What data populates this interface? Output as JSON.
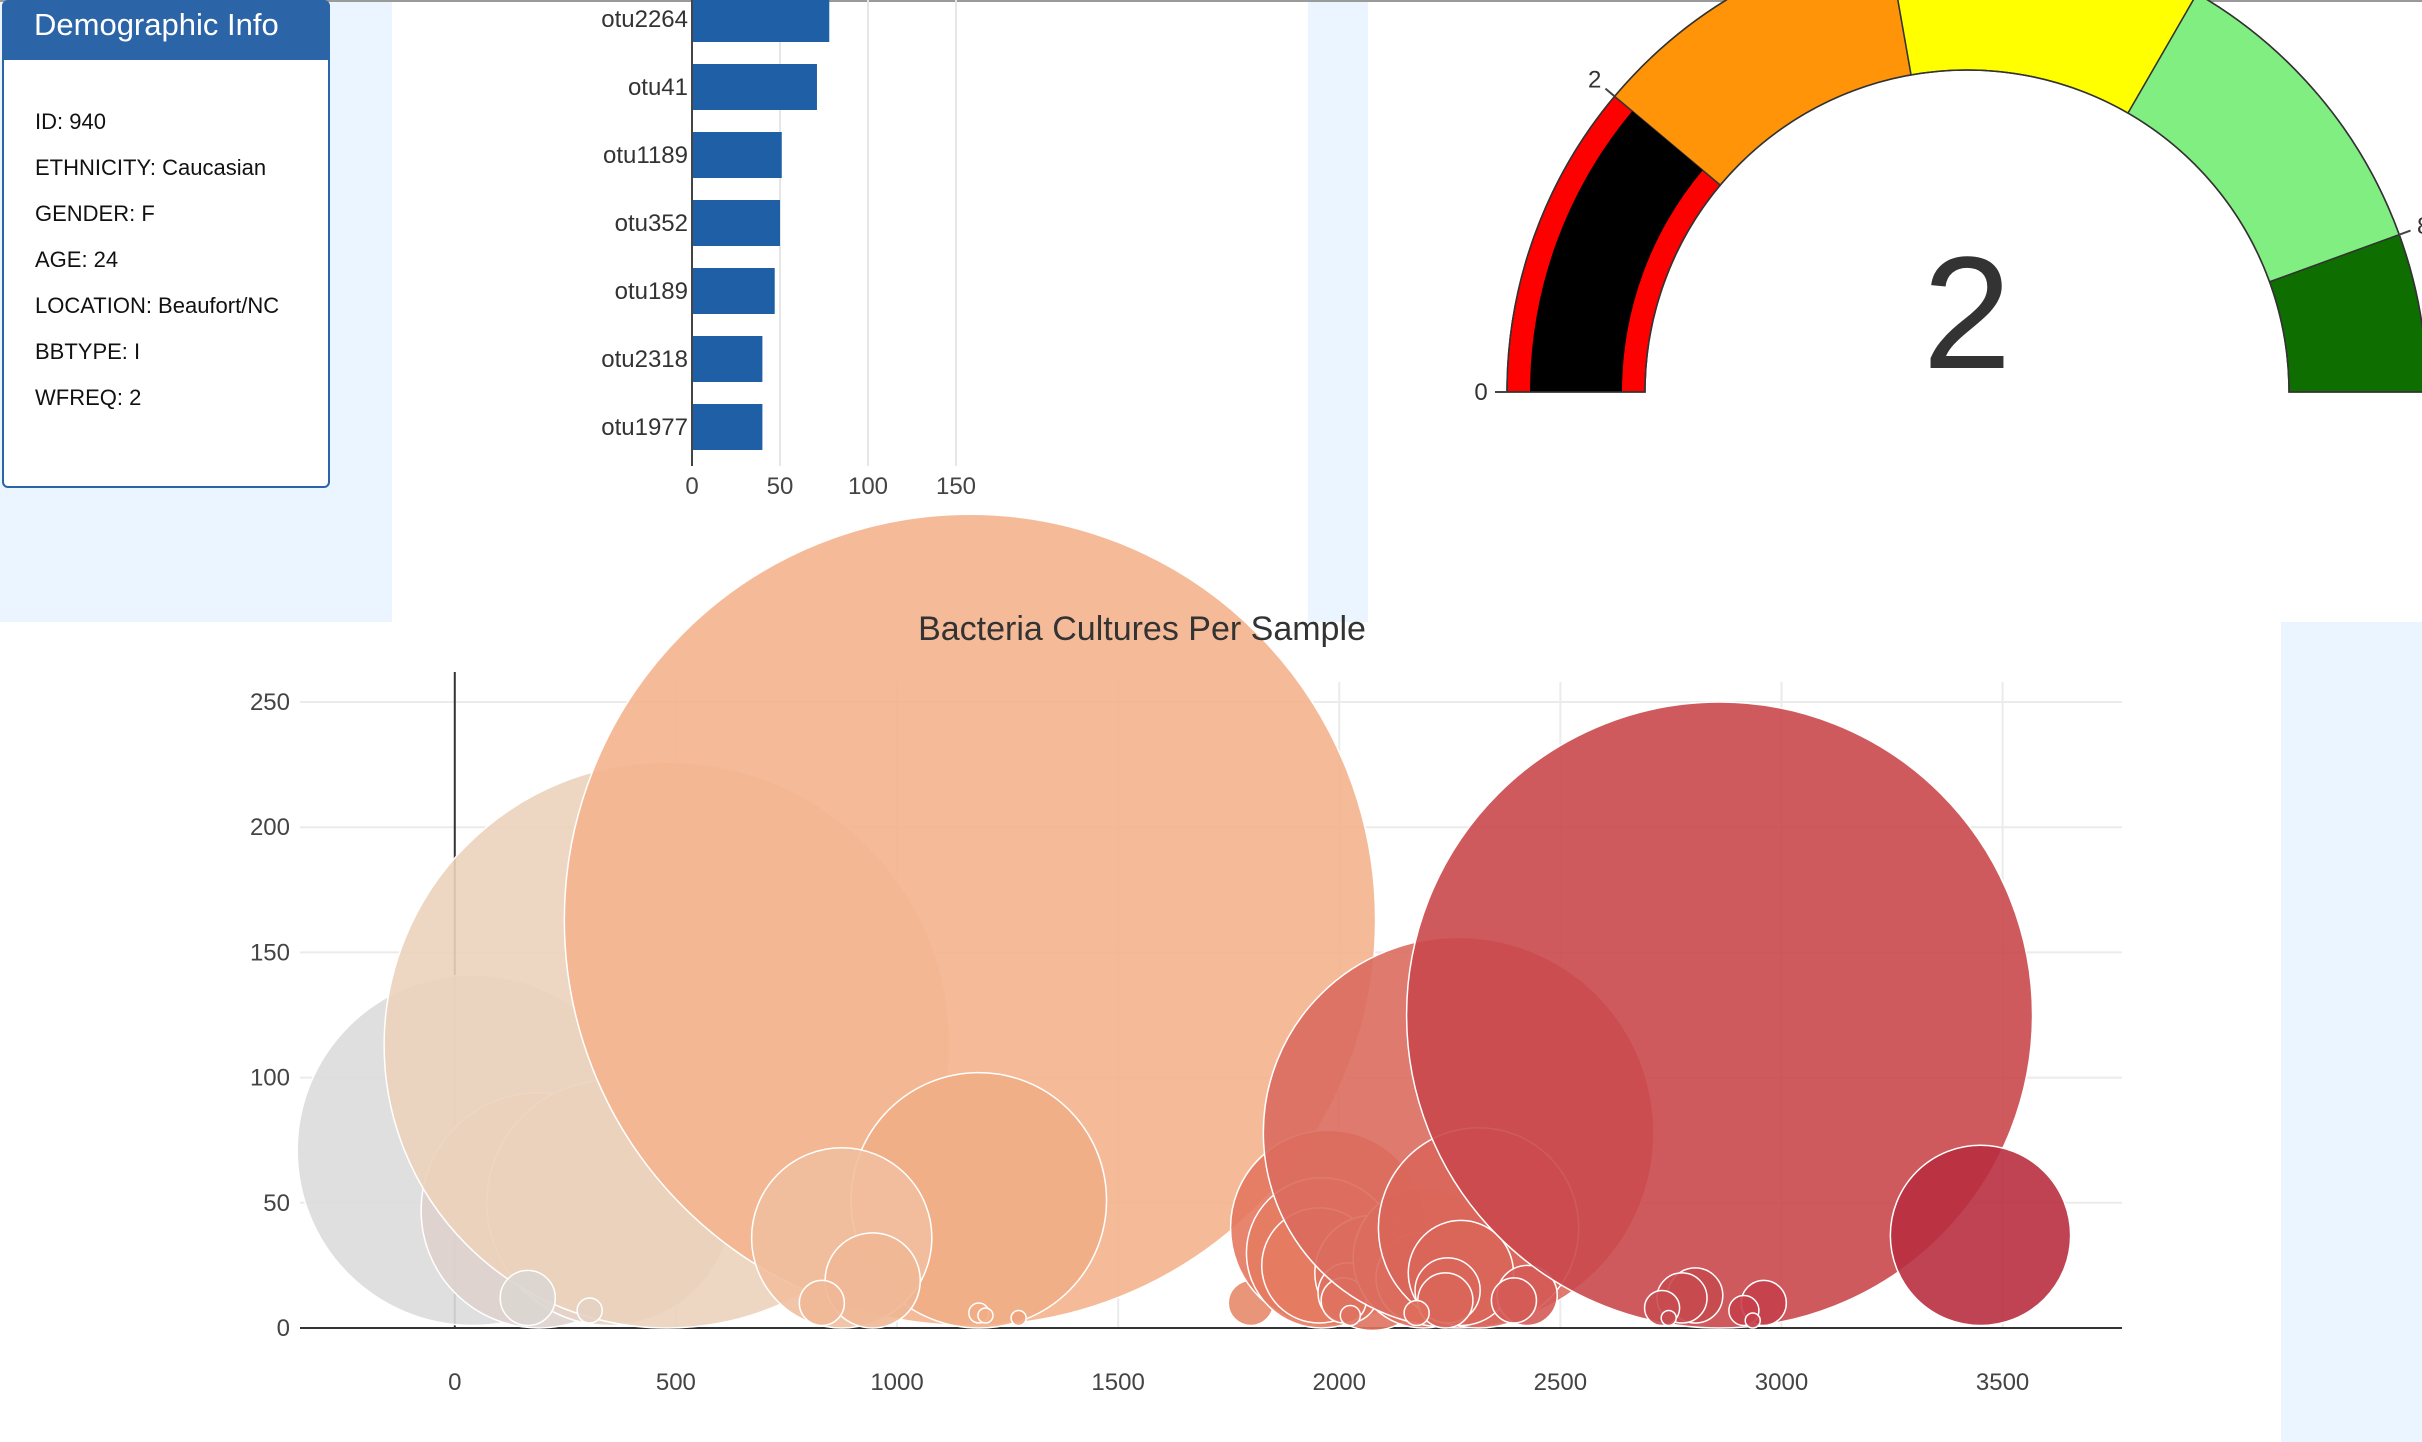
{
  "panel": {
    "title": "Demographic Info",
    "rows": [
      {
        "label": "ID",
        "value": "940",
        "text": "ID: 940"
      },
      {
        "label": "ETHNICITY",
        "value": "Caucasian",
        "text": "ETHNICITY: Caucasian"
      },
      {
        "label": "GENDER",
        "value": "F",
        "text": "GENDER: F"
      },
      {
        "label": "AGE",
        "value": "24",
        "text": "AGE: 24"
      },
      {
        "label": "LOCATION",
        "value": "Beaufort/NC",
        "text": "LOCATION: Beaufort/NC"
      },
      {
        "label": "BBTYPE",
        "value": "I",
        "text": "BBTYPE: I"
      },
      {
        "label": "WFREQ",
        "value": "2",
        "text": "WFREQ: 2"
      }
    ]
  },
  "colors": {
    "panel_blue": "#2b64a7",
    "bar_blue": "#1f5fa6",
    "light_background": "#eaf5ff"
  },
  "chart_data": [
    {
      "type": "bar",
      "orientation": "horizontal",
      "categories": [
        "otu2264",
        "otu41",
        "otu1189",
        "otu352",
        "otu189",
        "otu2318",
        "otu1977"
      ],
      "values": [
        78,
        71,
        51,
        50,
        47,
        40,
        40
      ],
      "xlim": [
        0,
        175
      ],
      "xticks": [
        0,
        50,
        100,
        150
      ],
      "grid": true,
      "color": "#1f5fa6"
    },
    {
      "type": "gauge",
      "value": 2,
      "range": [
        0,
        9
      ],
      "tick_labels": [
        "0",
        "2",
        "8"
      ],
      "tick_values": [
        0,
        2,
        8
      ],
      "steps": [
        {
          "range": [
            0,
            2
          ],
          "color": "#ff0000"
        },
        {
          "range": [
            2,
            4
          ],
          "color": "#ff9408"
        },
        {
          "range": [
            4,
            6
          ],
          "color": "#ffff00"
        },
        {
          "range": [
            6,
            8
          ],
          "color": "#80ee80"
        },
        {
          "range": [
            8,
            9
          ],
          "color": "#0e6e00"
        }
      ],
      "bar_color": "#000000"
    },
    {
      "type": "scatter",
      "title": "Bacteria Cultures Per Sample",
      "xlim": [
        -350,
        3770
      ],
      "ylim": [
        0,
        258
      ],
      "xticks": [
        0,
        500,
        1000,
        1500,
        2000,
        2500,
        3000,
        3500
      ],
      "yticks": [
        0,
        50,
        100,
        150,
        200,
        250
      ],
      "grid": true,
      "points": [
        {
          "x": 40,
          "y": 71,
          "r": 70,
          "color": "#dcdcdc"
        },
        {
          "x": 190,
          "y": 47,
          "r": 47,
          "color": "#ded2cc"
        },
        {
          "x": 350,
          "y": 50,
          "r": 49,
          "color": "#e6d3c5"
        },
        {
          "x": 480,
          "y": 113,
          "r": 113,
          "color": "#ebd1bb"
        },
        {
          "x": 165,
          "y": 12,
          "r": 11,
          "color": "#dcd6d2"
        },
        {
          "x": 305,
          "y": 7,
          "r": 5,
          "color": "#e5d2c3"
        },
        {
          "x": 1165,
          "y": 163,
          "r": 162,
          "color": "#f4b48e"
        },
        {
          "x": 1185,
          "y": 51,
          "r": 51,
          "color": "#f1ae86"
        },
        {
          "x": 875,
          "y": 36,
          "r": 36,
          "color": "#f1bf9f"
        },
        {
          "x": 945,
          "y": 19,
          "r": 19,
          "color": "#f0b795"
        },
        {
          "x": 830,
          "y": 10,
          "r": 9,
          "color": "#f0b896"
        },
        {
          "x": 1185,
          "y": 6,
          "r": 4,
          "color": "#f1ae86"
        },
        {
          "x": 1200,
          "y": 5,
          "r": 3,
          "color": "#f1ae86"
        },
        {
          "x": 1275,
          "y": 4,
          "r": 3,
          "color": "#eda47c"
        },
        {
          "x": 1800,
          "y": 10,
          "r": 9,
          "color": "#e58a6c"
        },
        {
          "x": 1975,
          "y": 40,
          "r": 39,
          "color": "#e4785f"
        },
        {
          "x": 1960,
          "y": 30,
          "r": 30,
          "color": "#e47c62"
        },
        {
          "x": 1955,
          "y": 25,
          "r": 23,
          "color": "#e47c62"
        },
        {
          "x": 2075,
          "y": 22,
          "r": 23,
          "color": "#e07360"
        },
        {
          "x": 2020,
          "y": 14,
          "r": 12,
          "color": "#e07360"
        },
        {
          "x": 2010,
          "y": 11,
          "r": 9,
          "color": "#e07360"
        },
        {
          "x": 2025,
          "y": 5,
          "r": 4,
          "color": "#e07360"
        },
        {
          "x": 2190,
          "y": 28,
          "r": 28,
          "color": "#de6e5c"
        },
        {
          "x": 2185,
          "y": 20,
          "r": 18,
          "color": "#de6e5c"
        },
        {
          "x": 2270,
          "y": 78,
          "r": 78,
          "color": "#da6c5e"
        },
        {
          "x": 2315,
          "y": 40,
          "r": 40,
          "color": "#d9665a"
        },
        {
          "x": 2275,
          "y": 22,
          "r": 21,
          "color": "#d9665a"
        },
        {
          "x": 2245,
          "y": 15,
          "r": 13,
          "color": "#d9665a"
        },
        {
          "x": 2240,
          "y": 11,
          "r": 11,
          "color": "#d9665a"
        },
        {
          "x": 2175,
          "y": 6,
          "r": 5,
          "color": "#de6e5c"
        },
        {
          "x": 2425,
          "y": 13,
          "r": 12,
          "color": "#d45b56"
        },
        {
          "x": 2395,
          "y": 11,
          "r": 9,
          "color": "#d45b56"
        },
        {
          "x": 2860,
          "y": 125,
          "r": 125,
          "color": "#c9484d"
        },
        {
          "x": 2805,
          "y": 13,
          "r": 11,
          "color": "#c74a4f"
        },
        {
          "x": 2775,
          "y": 12,
          "r": 10,
          "color": "#c74a4f"
        },
        {
          "x": 2960,
          "y": 10,
          "r": 9,
          "color": "#c53f4b"
        },
        {
          "x": 2730,
          "y": 8,
          "r": 7,
          "color": "#c84b50"
        },
        {
          "x": 2915,
          "y": 7,
          "r": 6,
          "color": "#c53f4b"
        },
        {
          "x": 2745,
          "y": 4,
          "r": 3,
          "color": "#c84b50"
        },
        {
          "x": 2935,
          "y": 3,
          "r": 3,
          "color": "#c53f4b"
        },
        {
          "x": 3450,
          "y": 37,
          "r": 36,
          "color": "#b92f40"
        }
      ]
    }
  ]
}
